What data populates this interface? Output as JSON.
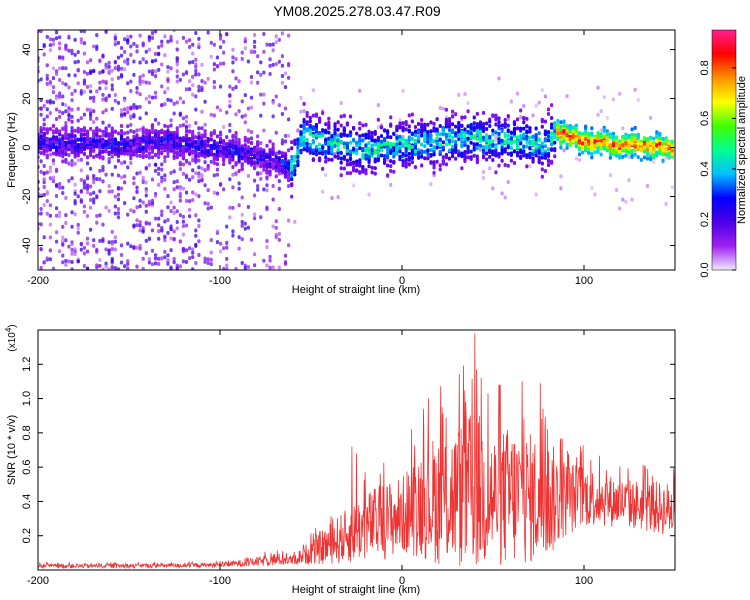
{
  "title": "YM08.2025.278.03.47.R09",
  "chart_data": [
    {
      "type": "heatmap",
      "name": "spectrogram",
      "xlabel": "Height of straight line (km)",
      "ylabel": "Frequency (Hz)",
      "xlim": [
        -200,
        150
      ],
      "ylim": [
        -50,
        48
      ],
      "xticks": [
        -200,
        -100,
        0,
        100
      ],
      "yticks": [
        -40,
        -20,
        0,
        20,
        40
      ],
      "xtick_labels": [
        "-200",
        "-100",
        "0",
        "100"
      ],
      "ytick_labels": [
        "-40",
        "-20",
        "0",
        "20",
        "40"
      ],
      "colorbar": {
        "label": "Normalized spectral amplitude",
        "range": [
          0,
          0.95
        ],
        "ticks": [
          0,
          0.2,
          0.4,
          0.6,
          0.8
        ],
        "tick_labels": [
          "0.0",
          "0.2",
          "0.4",
          "0.6",
          "0.8"
        ],
        "colors": [
          "#f0eaff",
          "#a020f0",
          "#4b00e6",
          "#0000ff",
          "#00c0ff",
          "#00ff90",
          "#40ff00",
          "#ffff00",
          "#ff9000",
          "#ff0000",
          "#ff2090"
        ]
      },
      "ridge": {
        "x": [
          -200,
          -170,
          -150,
          -135,
          -120,
          -100,
          -90,
          -75,
          -60,
          -55,
          -40,
          -20,
          0,
          20,
          40,
          60,
          80,
          85,
          100,
          120,
          150
        ],
        "y": [
          2,
          2,
          1,
          3,
          1,
          0,
          -2,
          -4,
          -8,
          4,
          2,
          -1,
          1,
          3,
          4,
          3,
          1,
          6,
          3,
          1,
          0
        ]
      }
    },
    {
      "type": "line",
      "name": "snr",
      "xlabel": "Height of straight line (km)",
      "ylabel": "SNR (10 * v/v)",
      "multiplier_base": "(x10",
      "multiplier_exp": "4",
      "multiplier_close": ")",
      "xlim": [
        -200,
        150
      ],
      "ylim": [
        0,
        1.4
      ],
      "xticks": [
        -200,
        -100,
        0,
        100
      ],
      "yticks": [
        0.2,
        0.4,
        0.6,
        0.8,
        1.0,
        1.2
      ],
      "xtick_labels": [
        "-200",
        "-100",
        "0",
        "100"
      ],
      "ytick_labels": [
        "0.2",
        "0.4",
        "0.6",
        "0.8",
        "1.0",
        "1.2"
      ],
      "color": "#ee3333",
      "envelope": {
        "x": [
          -200,
          -150,
          -100,
          -80,
          -70,
          -60,
          -45,
          -30,
          -20,
          -10,
          0,
          10,
          20,
          30,
          40,
          50,
          60,
          70,
          80,
          90,
          100,
          120,
          150
        ],
        "base": [
          0.02,
          0.02,
          0.025,
          0.04,
          0.05,
          0.05,
          0.1,
          0.15,
          0.2,
          0.22,
          0.25,
          0.3,
          0.3,
          0.3,
          0.32,
          0.3,
          0.3,
          0.3,
          0.3,
          0.35,
          0.38,
          0.35,
          0.3
        ],
        "amp": [
          0.02,
          0.02,
          0.02,
          0.04,
          0.06,
          0.04,
          0.15,
          0.25,
          0.3,
          0.35,
          0.35,
          0.5,
          0.6,
          0.65,
          0.75,
          0.6,
          0.65,
          0.6,
          0.55,
          0.35,
          0.28,
          0.22,
          0.25
        ]
      },
      "peaks": [
        {
          "x": 40,
          "y": 1.38
        },
        {
          "x": 43.5,
          "y": 1.12
        },
        {
          "x": 66,
          "y": 1.1
        },
        {
          "x": 76,
          "y": 1.09
        },
        {
          "x": -25,
          "y": 0.68
        },
        {
          "x": -27.5,
          "y": 0.72
        },
        {
          "x": 22,
          "y": 0.95
        },
        {
          "x": 35,
          "y": 0.98
        }
      ]
    }
  ]
}
